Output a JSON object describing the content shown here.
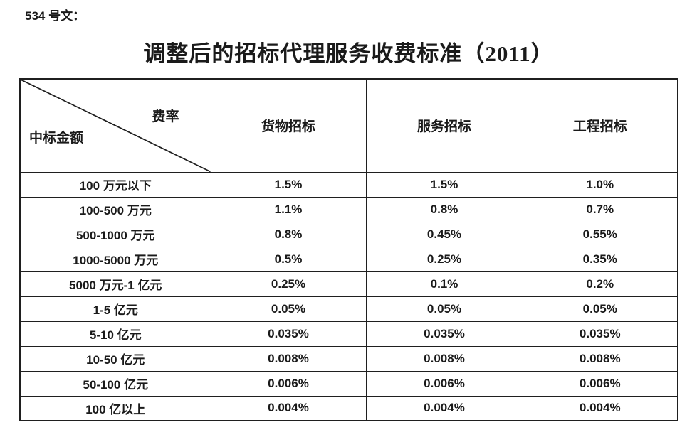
{
  "doc_number": "534 号文：",
  "title": "调整后的招标代理服务收费标准（2011）",
  "table": {
    "corner": {
      "top_right": "费率",
      "bottom_left": "中标金额"
    },
    "columns": [
      "货物招标",
      "服务招标",
      "工程招标"
    ],
    "rows": [
      {
        "label": "100 万元以下",
        "values": [
          "1.5%",
          "1.5%",
          "1.0%"
        ]
      },
      {
        "label": "100-500 万元",
        "values": [
          "1.1%",
          "0.8%",
          "0.7%"
        ]
      },
      {
        "label": "500-1000 万元",
        "values": [
          "0.8%",
          "0.45%",
          "0.55%"
        ]
      },
      {
        "label": "1000-5000 万元",
        "values": [
          "0.5%",
          "0.25%",
          "0.35%"
        ]
      },
      {
        "label": "5000 万元-1 亿元",
        "values": [
          "0.25%",
          "0.1%",
          "0.2%"
        ]
      },
      {
        "label": "1-5 亿元",
        "values": [
          "0.05%",
          "0.05%",
          "0.05%"
        ]
      },
      {
        "label": "5-10 亿元",
        "values": [
          "0.035%",
          "0.035%",
          "0.035%"
        ]
      },
      {
        "label": "10-50 亿元",
        "values": [
          "0.008%",
          "0.008%",
          "0.008%"
        ]
      },
      {
        "label": "50-100 亿元",
        "values": [
          "0.006%",
          "0.006%",
          "0.006%"
        ]
      },
      {
        "label": "100 亿以上",
        "values": [
          "0.004%",
          "0.004%",
          "0.004%"
        ]
      }
    ]
  },
  "colors": {
    "background": "#ffffff",
    "text": "#1a1a1a",
    "border": "#1f1f1f"
  }
}
